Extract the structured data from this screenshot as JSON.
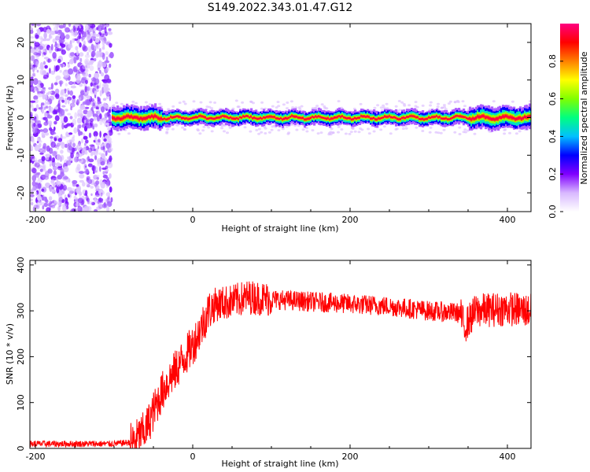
{
  "title": "S149.2022.343.01.47.G12",
  "chart_data": [
    {
      "type": "heatmap",
      "xlabel": "Height of straight line (km)",
      "ylabel": "Frequency (Hz)",
      "xlim": [
        -207,
        430
      ],
      "ylim": [
        -25,
        25
      ],
      "x_ticks": [
        -200,
        0,
        200,
        400
      ],
      "y_ticks": [
        -20,
        -10,
        0,
        10,
        20
      ],
      "grid": false,
      "noise_region_x": [
        -207,
        -103
      ],
      "signal_region_x": [
        -103,
        430
      ],
      "signal_center_hz": 0,
      "signal_halfwidth_hz": 2,
      "colorbar": {
        "label": "Normalized spectral amplitude",
        "range": [
          0,
          1
        ],
        "ticks": [
          0.0,
          0.2,
          0.4,
          0.6,
          0.8
        ],
        "tick_labels": [
          "0.0",
          "0.2",
          "0.4",
          "0.6",
          "0.8"
        ],
        "colormap": [
          "#ffffff",
          "#d8b8ff",
          "#8000ff",
          "#0000ff",
          "#00c0ff",
          "#00ff80",
          "#80ff00",
          "#ffff00",
          "#ff8000",
          "#ff0000",
          "#ff0080"
        ]
      }
    },
    {
      "type": "line",
      "xlabel": "Height of straight line (km)",
      "ylabel": "SNR (10 * v/v)",
      "xlim": [
        -207,
        430
      ],
      "ylim": [
        0,
        410
      ],
      "x_ticks": [
        -200,
        0,
        200,
        400
      ],
      "y_ticks": [
        0,
        100,
        200,
        300,
        400
      ],
      "grid": false,
      "series": [
        {
          "color": "#ff0000",
          "x": [
            -207,
            -150,
            -100,
            -75,
            -60,
            -50,
            -40,
            -30,
            -20,
            -10,
            0,
            10,
            20,
            30,
            50,
            70,
            100,
            150,
            200,
            250,
            300,
            340,
            345,
            360,
            400,
            430
          ],
          "y": [
            10,
            10,
            10,
            14,
            40,
            80,
            120,
            150,
            175,
            200,
            225,
            260,
            300,
            315,
            320,
            330,
            325,
            320,
            315,
            310,
            300,
            295,
            265,
            300,
            305,
            300
          ]
        }
      ]
    }
  ],
  "colors": {
    "signal_line": "#ff0000",
    "noise_scatter": "#8000ff"
  }
}
